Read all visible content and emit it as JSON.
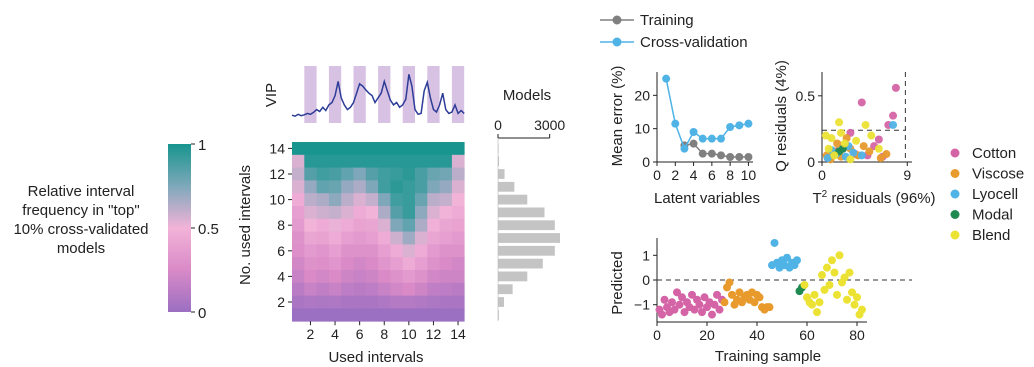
{
  "colorbar": {
    "title": "Relative interval frequency in \"top\" 10% cross-validated models",
    "ticks": [
      "1",
      "0.5",
      "0"
    ],
    "colors": [
      "#9b6fc2",
      "#d98ac7",
      "#f2b3d8",
      "#7ea8ba",
      "#17958e"
    ]
  },
  "chart_data": [
    {
      "type": "line",
      "panel": "vip",
      "ylabel": "VIP",
      "xlabel": "",
      "shaded_intervals": [
        1,
        3,
        5,
        7,
        9,
        11,
        13
      ],
      "x": [
        0.0,
        0.25,
        0.5,
        0.75,
        1.0,
        1.25,
        1.5,
        1.75,
        2.0,
        2.25,
        2.5,
        2.75,
        3.0,
        3.25,
        3.5,
        3.75,
        4.0,
        4.25,
        4.5,
        4.75,
        5.0,
        5.25,
        5.5,
        5.75,
        6.0,
        6.25,
        6.5,
        6.75,
        7.0,
        7.25,
        7.5,
        7.75,
        8.0,
        8.25,
        8.5,
        8.75,
        9.0,
        9.25,
        9.5,
        9.75,
        10.0,
        10.25,
        10.5,
        10.75,
        11.0,
        11.25,
        11.5,
        11.75,
        12.0,
        12.25,
        12.5,
        12.75,
        13.0,
        13.25,
        13.5,
        13.75,
        14.0
      ],
      "y": [
        0.08,
        0.06,
        0.1,
        0.07,
        0.09,
        0.12,
        0.1,
        0.14,
        0.2,
        0.16,
        0.25,
        0.18,
        0.3,
        0.35,
        0.5,
        0.8,
        0.45,
        0.3,
        0.2,
        0.25,
        0.35,
        0.55,
        0.75,
        0.7,
        0.62,
        0.55,
        0.5,
        0.35,
        0.45,
        0.55,
        0.8,
        0.6,
        0.4,
        0.3,
        0.35,
        0.25,
        0.3,
        0.42,
        0.95,
        0.7,
        0.2,
        0.1,
        0.12,
        0.6,
        0.78,
        0.45,
        0.2,
        0.15,
        0.3,
        0.55,
        0.2,
        0.12,
        0.15,
        0.3,
        0.12,
        0.18,
        0.12
      ],
      "color": "#2d3d97",
      "shade_color": "#d8c2e4"
    },
    {
      "type": "heatmap",
      "panel": "interval-frequency",
      "xlabel": "Used intervals",
      "ylabel": "No. used intervals",
      "x_ticks": [
        2,
        4,
        6,
        8,
        10,
        12,
        14
      ],
      "y_ticks": [
        2,
        4,
        6,
        8,
        10,
        12,
        14
      ],
      "columns": 14,
      "rows": 14,
      "rows_from_top": [
        [
          1,
          1,
          1,
          1,
          1,
          1,
          1,
          1,
          1,
          1,
          1,
          1,
          1,
          1
        ],
        [
          0.55,
          0.96,
          0.96,
          0.96,
          0.96,
          0.96,
          0.96,
          0.96,
          0.96,
          0.96,
          0.96,
          0.96,
          0.96,
          0.55
        ],
        [
          0.6,
          0.85,
          0.9,
          0.88,
          0.82,
          0.75,
          0.85,
          0.9,
          0.92,
          0.95,
          0.88,
          0.8,
          0.78,
          0.62
        ],
        [
          0.55,
          0.7,
          0.82,
          0.8,
          0.7,
          0.65,
          0.75,
          0.9,
          0.95,
          0.92,
          0.88,
          0.75,
          0.7,
          0.55
        ],
        [
          0.45,
          0.62,
          0.65,
          0.72,
          0.62,
          0.55,
          0.6,
          0.75,
          0.9,
          0.92,
          0.8,
          0.62,
          0.6,
          0.5
        ],
        [
          0.38,
          0.55,
          0.58,
          0.6,
          0.55,
          0.45,
          0.5,
          0.65,
          0.85,
          0.92,
          0.72,
          0.55,
          0.5,
          0.45
        ],
        [
          0.35,
          0.5,
          0.45,
          0.52,
          0.45,
          0.4,
          0.42,
          0.55,
          0.75,
          0.82,
          0.65,
          0.48,
          0.42,
          0.4
        ],
        [
          0.3,
          0.42,
          0.4,
          0.45,
          0.38,
          0.35,
          0.38,
          0.45,
          0.58,
          0.68,
          0.55,
          0.42,
          0.38,
          0.35
        ],
        [
          0.28,
          0.35,
          0.32,
          0.38,
          0.3,
          0.3,
          0.3,
          0.38,
          0.45,
          0.55,
          0.45,
          0.35,
          0.3,
          0.3
        ],
        [
          0.22,
          0.3,
          0.28,
          0.32,
          0.25,
          0.22,
          0.25,
          0.32,
          0.38,
          0.45,
          0.38,
          0.3,
          0.25,
          0.22
        ],
        [
          0.18,
          0.25,
          0.22,
          0.25,
          0.2,
          0.18,
          0.2,
          0.25,
          0.3,
          0.35,
          0.3,
          0.22,
          0.2,
          0.2
        ],
        [
          0.12,
          0.18,
          0.15,
          0.18,
          0.14,
          0.12,
          0.14,
          0.18,
          0.22,
          0.25,
          0.2,
          0.15,
          0.14,
          0.12
        ],
        [
          0.06,
          0.08,
          0.07,
          0.08,
          0.06,
          0.06,
          0.06,
          0.08,
          0.1,
          0.1,
          0.09,
          0.07,
          0.06,
          0.06
        ],
        [
          0,
          0,
          0,
          0,
          0,
          0,
          0,
          0,
          0,
          0,
          0,
          0,
          0,
          0
        ]
      ]
    },
    {
      "type": "bar",
      "panel": "models-histogram",
      "orientation": "horizontal",
      "title": "Models",
      "x_ticks": [
        "0",
        "3000"
      ],
      "xlim": [
        0,
        3600
      ],
      "categories": [
        1,
        2,
        3,
        4,
        5,
        6,
        7,
        8,
        9,
        10,
        11,
        12,
        13,
        14
      ],
      "values": [
        50,
        350,
        850,
        1700,
        2600,
        3300,
        3600,
        3300,
        2700,
        1700,
        950,
        380,
        60,
        5
      ],
      "color": "#c4c4c4"
    },
    {
      "type": "line",
      "panel": "mean-error",
      "xlabel": "Latent variables",
      "ylabel": "Mean error (%)",
      "xlim": [
        0,
        10.5
      ],
      "ylim": [
        0,
        27
      ],
      "x_ticks": [
        0,
        2,
        4,
        6,
        8,
        10
      ],
      "y_ticks": [
        0,
        10,
        20
      ],
      "x": [
        1,
        2,
        3,
        4,
        5,
        6,
        7,
        8,
        9,
        10
      ],
      "series": [
        {
          "name": "Training",
          "color": "#808080",
          "values": [
            null,
            null,
            5,
            5.5,
            2.5,
            2.5,
            2,
            1.5,
            1.5,
            1.5
          ]
        },
        {
          "name": "Cross-validation",
          "color": "#4fb3e6",
          "values": [
            25,
            11.5,
            4,
            9,
            7,
            7,
            7,
            10.5,
            11,
            11.5
          ]
        }
      ]
    },
    {
      "type": "scatter",
      "panel": "residuals",
      "xlabel": "T² residuals (96%)",
      "ylabel": "Q residuals (4%)",
      "xlim": [
        0,
        9.5
      ],
      "ylim": [
        0,
        0.68
      ],
      "x_ticks": [
        0,
        9
      ],
      "y_ticks": [
        0,
        0.5
      ],
      "thresholds": {
        "x": 8.8,
        "y": 0.24
      },
      "series": [
        {
          "name": "Cotton",
          "color": "#d564a6",
          "points": [
            [
              7.8,
              0.56
            ],
            [
              4.2,
              0.45
            ],
            [
              7.5,
              0.35
            ],
            [
              6.0,
              0.17
            ],
            [
              3.0,
              0.22
            ],
            [
              1.5,
              0.08
            ],
            [
              0.6,
              0.03
            ],
            [
              5.5,
              0.12
            ],
            [
              7.0,
              0.28
            ],
            [
              3.5,
              0.06
            ],
            [
              2.2,
              0.1
            ],
            [
              4.8,
              0.05
            ],
            [
              6.4,
              0.04
            ]
          ]
        },
        {
          "name": "Viscose",
          "color": "#e89a2d",
          "points": [
            [
              0.5,
              0.05
            ],
            [
              1.2,
              0.08
            ],
            [
              2.0,
              0.04
            ],
            [
              3.0,
              0.1
            ],
            [
              3.8,
              0.05
            ],
            [
              5.0,
              0.08
            ],
            [
              6.2,
              0.03
            ],
            [
              1.6,
              0.14
            ],
            [
              2.6,
              0.18
            ],
            [
              4.4,
              0.12
            ],
            [
              0.9,
              0.02
            ],
            [
              6.8,
              0.06
            ]
          ]
        },
        {
          "name": "Lyocell",
          "color": "#4fb3e6",
          "points": [
            [
              0.6,
              0.03
            ],
            [
              1.5,
              0.06
            ],
            [
              2.5,
              0.04
            ],
            [
              3.3,
              0.07
            ],
            [
              4.2,
              0.05
            ],
            [
              7.5,
              0.28
            ],
            [
              1.0,
              0.09
            ],
            [
              2.8,
              0.12
            ]
          ]
        },
        {
          "name": "Modal",
          "color": "#1e8a52",
          "points": [
            [
              1.8,
              0.08
            ],
            [
              2.2,
              0.1
            ]
          ]
        },
        {
          "name": "Blend",
          "color": "#ebe234",
          "points": [
            [
              0.4,
              0.2
            ],
            [
              1.0,
              0.18
            ],
            [
              1.8,
              0.3
            ],
            [
              2.4,
              0.14
            ],
            [
              3.0,
              0.02
            ],
            [
              3.6,
              0.16
            ],
            [
              4.6,
              0.28
            ],
            [
              5.2,
              0.2
            ],
            [
              0.7,
              0.1
            ],
            [
              2.0,
              0.22
            ],
            [
              6.0,
              0.1
            ],
            [
              1.3,
              0.05
            ]
          ]
        }
      ]
    },
    {
      "type": "scatter",
      "panel": "predicted",
      "xlabel": "Training sample",
      "ylabel": "Predicted",
      "xlim": [
        0,
        84
      ],
      "ylim": [
        -1.7,
        1.7
      ],
      "x_ticks": [
        0,
        20,
        40,
        60,
        80
      ],
      "y_ticks": [
        -1,
        0,
        1
      ],
      "reference_line": 0,
      "series": [
        {
          "name": "Cotton",
          "color": "#d564a6",
          "points": [
            [
              1,
              -1.2
            ],
            [
              2,
              -1.4
            ],
            [
              3,
              -0.8
            ],
            [
              4,
              -1.1
            ],
            [
              5,
              -1.3
            ],
            [
              6,
              -0.9
            ],
            [
              7,
              -1.2
            ],
            [
              8,
              -0.5
            ],
            [
              9,
              -1.0
            ],
            [
              10,
              -0.7
            ],
            [
              11,
              -1.3
            ],
            [
              12,
              -0.9
            ],
            [
              13,
              -1.1
            ],
            [
              14,
              -0.6
            ],
            [
              15,
              -1.2
            ],
            [
              16,
              -0.8
            ],
            [
              17,
              -1.0
            ],
            [
              18,
              -1.3
            ],
            [
              19,
              -0.7
            ],
            [
              20,
              -1.1
            ],
            [
              21,
              -0.9
            ],
            [
              22,
              -1.4
            ],
            [
              23,
              -1.0
            ],
            [
              24,
              -0.6
            ],
            [
              25,
              -1.2
            ],
            [
              26,
              -0.8
            ]
          ]
        },
        {
          "name": "Viscose",
          "color": "#e89a2d",
          "points": [
            [
              27,
              -0.9
            ],
            [
              28,
              -0.3
            ],
            [
              29,
              -0.1
            ],
            [
              30,
              -0.6
            ],
            [
              31,
              -1.0
            ],
            [
              32,
              -0.8
            ],
            [
              33,
              -0.5
            ],
            [
              34,
              -0.9
            ],
            [
              35,
              -0.7
            ],
            [
              36,
              -0.6
            ],
            [
              37,
              -0.8
            ],
            [
              38,
              -0.5
            ],
            [
              39,
              -0.9
            ],
            [
              40,
              -0.6
            ],
            [
              41,
              -0.7
            ],
            [
              42,
              -1.1
            ],
            [
              43,
              -1.2
            ],
            [
              44,
              -1.1
            ],
            [
              45,
              -1.1
            ]
          ]
        },
        {
          "name": "Lyocell",
          "color": "#4fb3e6",
          "points": [
            [
              46,
              0.6
            ],
            [
              47,
              1.5
            ],
            [
              48,
              0.7
            ],
            [
              49,
              0.5
            ],
            [
              50,
              0.8
            ],
            [
              51,
              0.6
            ],
            [
              52,
              0.9
            ],
            [
              53,
              0.5
            ],
            [
              54,
              0.7
            ],
            [
              55,
              0.6
            ],
            [
              56,
              0.8
            ]
          ]
        },
        {
          "name": "Modal",
          "color": "#1e8a52",
          "points": [
            [
              57,
              -0.45
            ],
            [
              58,
              -0.3
            ]
          ]
        },
        {
          "name": "Blend",
          "color": "#ebe234",
          "points": [
            [
              59,
              -0.2
            ],
            [
              60,
              -0.7
            ],
            [
              61,
              -0.9
            ],
            [
              62,
              -1.0
            ],
            [
              63,
              -0.6
            ],
            [
              64,
              -1.3
            ],
            [
              65,
              -0.9
            ],
            [
              66,
              0.2
            ],
            [
              67,
              -0.4
            ],
            [
              68,
              0.5
            ],
            [
              69,
              -0.2
            ],
            [
              70,
              0.8
            ],
            [
              71,
              0.3
            ],
            [
              72,
              -0.6
            ],
            [
              73,
              1.0
            ],
            [
              74,
              -0.1
            ],
            [
              75,
              0.1
            ],
            [
              76,
              -0.8
            ],
            [
              77,
              0.3
            ],
            [
              78,
              -0.5
            ],
            [
              79,
              -1.0
            ],
            [
              80,
              -0.7
            ],
            [
              81,
              -1.4
            ],
            [
              82,
              -1.2
            ]
          ]
        }
      ]
    }
  ]
}
